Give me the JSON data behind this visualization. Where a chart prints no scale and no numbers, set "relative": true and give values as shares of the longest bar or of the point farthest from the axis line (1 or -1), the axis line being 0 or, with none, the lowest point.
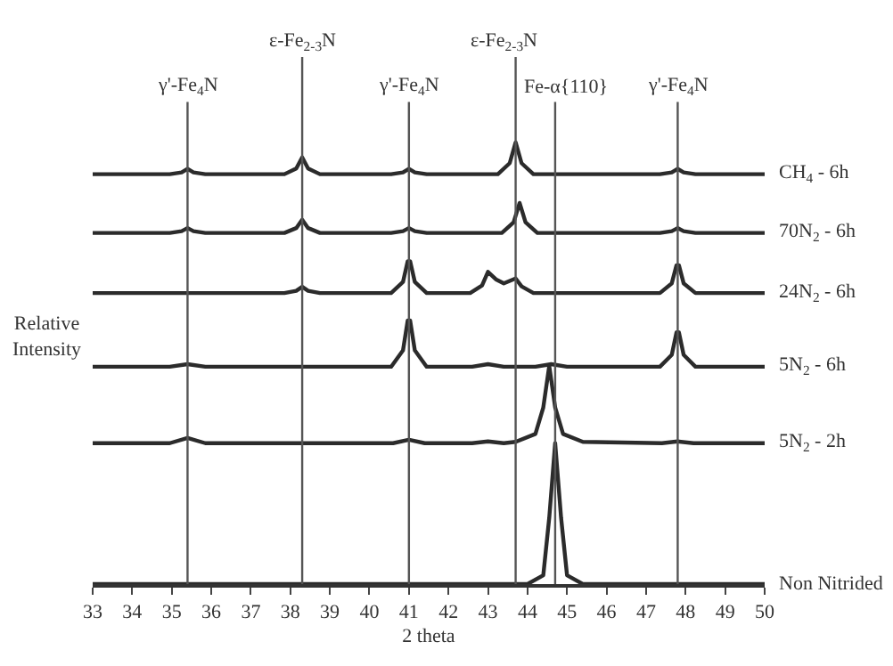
{
  "chart_data": {
    "type": "line",
    "relative": true,
    "xlabel": "2 theta",
    "ylabel": "Relative Intensity",
    "xlim": [
      33,
      50
    ],
    "xticks": [
      33,
      34,
      35,
      36,
      37,
      38,
      39,
      40,
      41,
      42,
      43,
      44,
      45,
      46,
      47,
      48,
      49,
      50
    ],
    "tick_labels": "x",
    "legend": false,
    "marker": "none",
    "line_style": "solid",
    "series": [
      {
        "name": "CH$_{4}$ - 6h",
        "color": "#2b2b2b",
        "x": [
          33,
          34.95,
          35.25,
          35.4,
          35.55,
          35.85,
          37.85,
          38.15,
          38.3,
          38.45,
          38.75,
          40.55,
          40.85,
          41.0,
          41.15,
          41.45,
          43.25,
          43.55,
          43.7,
          43.85,
          44.15,
          47.35,
          47.65,
          47.8,
          47.95,
          48.25,
          50
        ],
        "values": [
          0.928,
          0.928,
          0.932,
          0.94,
          0.932,
          0.928,
          0.928,
          0.941,
          0.966,
          0.941,
          0.928,
          0.928,
          0.932,
          0.94,
          0.932,
          0.928,
          0.928,
          0.953,
          1.0,
          0.953,
          0.928,
          0.928,
          0.932,
          0.94,
          0.932,
          0.928,
          0.928
        ]
      },
      {
        "name": "70N$_{2}$ - 6h",
        "color": "#2b2b2b",
        "x": [
          33,
          34.95,
          35.25,
          35.4,
          35.55,
          35.85,
          37.85,
          38.15,
          38.3,
          38.45,
          38.75,
          40.55,
          40.85,
          41.0,
          41.15,
          41.45,
          43.35,
          43.65,
          43.8,
          43.95,
          44.25,
          47.35,
          47.65,
          47.8,
          47.95,
          48.25,
          50
        ],
        "values": [
          0.795,
          0.795,
          0.799,
          0.806,
          0.799,
          0.795,
          0.795,
          0.806,
          0.825,
          0.806,
          0.795,
          0.795,
          0.799,
          0.806,
          0.799,
          0.795,
          0.795,
          0.819,
          0.863,
          0.819,
          0.795,
          0.795,
          0.799,
          0.806,
          0.799,
          0.795,
          0.795
        ]
      },
      {
        "name": "24N$_{2}$ - 6h",
        "color": "#2b2b2b",
        "x": [
          33,
          37.85,
          38.15,
          38.3,
          38.45,
          38.75,
          40.55,
          40.85,
          40.97,
          41.03,
          41.15,
          41.45,
          42.55,
          42.85,
          43.0,
          43.2,
          43.4,
          43.7,
          43.85,
          44.15,
          47.35,
          47.65,
          47.77,
          47.83,
          47.95,
          48.25,
          50
        ],
        "values": [
          0.659,
          0.659,
          0.664,
          0.673,
          0.664,
          0.659,
          0.659,
          0.684,
          0.731,
          0.731,
          0.684,
          0.659,
          0.659,
          0.676,
          0.707,
          0.69,
          0.681,
          0.692,
          0.674,
          0.659,
          0.659,
          0.681,
          0.722,
          0.722,
          0.681,
          0.659,
          0.659
        ]
      },
      {
        "name": "5N$_{2}$ - 6h",
        "color": "#2b2b2b",
        "x": [
          33,
          34.95,
          35.4,
          35.85,
          40.55,
          40.85,
          40.97,
          41.03,
          41.15,
          41.45,
          42.6,
          43.0,
          43.4,
          44.2,
          44.6,
          45.0,
          47.35,
          47.65,
          47.77,
          47.83,
          47.95,
          48.25,
          50
        ],
        "values": [
          0.492,
          0.492,
          0.498,
          0.492,
          0.492,
          0.529,
          0.597,
          0.597,
          0.529,
          0.492,
          0.492,
          0.498,
          0.492,
          0.492,
          0.498,
          0.492,
          0.492,
          0.519,
          0.57,
          0.57,
          0.519,
          0.492,
          0.492
        ]
      },
      {
        "name": "5N$_{2}$ - 2h",
        "color": "#2b2b2b",
        "x": [
          33,
          34.95,
          35.4,
          35.85,
          40.6,
          41.0,
          41.4,
          42.6,
          43.0,
          43.4,
          43.7,
          44.2,
          44.4,
          44.55,
          44.7,
          44.9,
          45.4,
          47.4,
          47.8,
          48.2,
          50
        ],
        "values": [
          0.319,
          0.319,
          0.331,
          0.319,
          0.319,
          0.327,
          0.319,
          0.319,
          0.323,
          0.319,
          0.322,
          0.34,
          0.4,
          0.494,
          0.4,
          0.34,
          0.322,
          0.319,
          0.323,
          0.319,
          0.319
        ]
      },
      {
        "name": "Non Nitrided",
        "color": "#2b2b2b",
        "x": [
          33,
          44.0,
          44.4,
          44.55,
          44.7,
          44.85,
          45.0,
          45.4,
          50
        ],
        "values": [
          0,
          0,
          0.02,
          0.15,
          0.319,
          0.15,
          0.02,
          0,
          0
        ]
      }
    ],
    "ref_lines": [
      {
        "axis": "x",
        "value": 35.4,
        "label": "γ'-Fe$_{4}$N",
        "color": "#555555"
      },
      {
        "axis": "x",
        "value": 38.3,
        "label": "ε-Fe$_{2-3}$N",
        "color": "#555555"
      },
      {
        "axis": "x",
        "value": 41.0,
        "label": "γ'-Fe$_{4}$N",
        "color": "#555555"
      },
      {
        "axis": "x",
        "value": 43.7,
        "label": "ε-Fe$_{2-3}$N",
        "color": "#555555"
      },
      {
        "axis": "x",
        "value": 44.7,
        "label": "Fe-α{110}",
        "color": "#555555"
      },
      {
        "axis": "x",
        "value": 47.8,
        "label": "γ'-Fe$_{4}$N",
        "color": "#555555"
      }
    ]
  }
}
